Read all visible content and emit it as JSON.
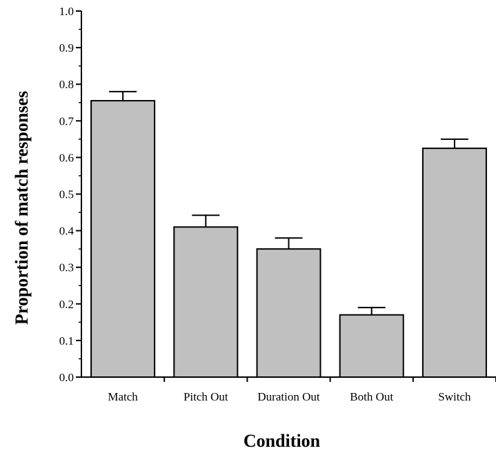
{
  "chart_data": {
    "type": "bar",
    "title": "",
    "xlabel": "Condition",
    "ylabel": "Proportion of match responses",
    "categories": [
      "Match",
      "Pitch Out",
      "Duration Out",
      "Both Out",
      "Switch"
    ],
    "values": [
      0.755,
      0.41,
      0.35,
      0.17,
      0.625
    ],
    "error": [
      0.025,
      0.032,
      0.03,
      0.02,
      0.025
    ],
    "ylim": [
      0,
      1.0
    ],
    "yticks": [
      "0.0",
      "0.1",
      "0.2",
      "0.3",
      "0.4",
      "0.5",
      "0.6",
      "0.7",
      "0.8",
      "0.9",
      "1.0"
    ],
    "bar_color": "#c0c0c0",
    "grid": false,
    "legend": "none"
  }
}
